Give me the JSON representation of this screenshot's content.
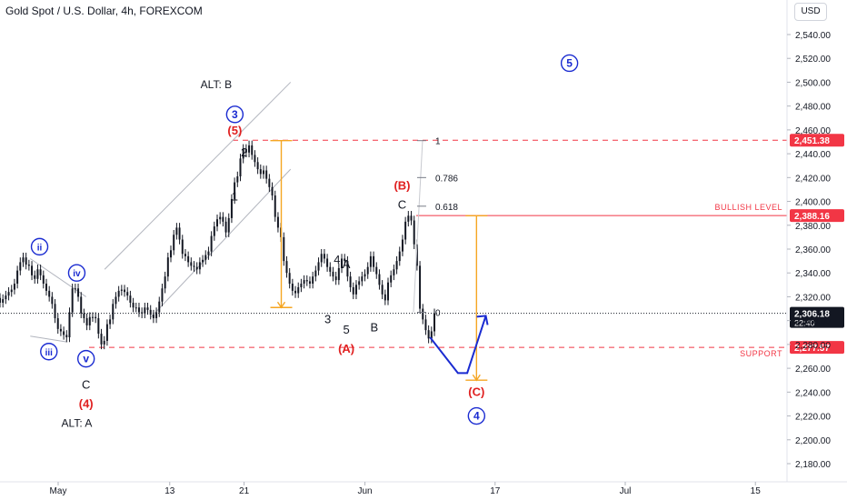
{
  "header": {
    "title": "Gold Spot / U.S. Dollar, 4h, FOREXCOM",
    "currency": "USD"
  },
  "colors": {
    "candle": "#131722",
    "channel": "#b2b5be",
    "red_level": "#f23645",
    "orange_projection": "#f5a623",
    "blue_path": "#1a2bd1",
    "wave_blue": "#1a2bd1",
    "wave_red": "#e02020",
    "fib": "#787b86"
  },
  "chart_data": {
    "type": "candlestick",
    "symbol": "Gold Spot / U.S. Dollar",
    "timeframe": "4h",
    "exchange": "FOREXCOM",
    "y_axis": {
      "ticks": [
        "2,540.00",
        "2,520.00",
        "2,500.00",
        "2,480.00",
        "2,460.00",
        "2,440.00",
        "2,420.00",
        "2,400.00",
        "2,380.00",
        "2,360.00",
        "2,340.00",
        "2,320.00",
        "2,300.00",
        "2,280.00",
        "2,260.00",
        "2,240.00",
        "2,220.00",
        "2,200.00",
        "2,180.00"
      ],
      "range": [
        2170,
        2555
      ]
    },
    "x_axis": {
      "ticks": [
        {
          "label": "May",
          "date": "2024-05-01"
        },
        {
          "label": "13",
          "date": "2024-05-13"
        },
        {
          "label": "21",
          "date": "2024-05-21"
        },
        {
          "label": "Jun",
          "date": "2024-06-03"
        },
        {
          "label": "17",
          "date": "2024-06-17"
        },
        {
          "label": "Jul",
          "date": "2024-07-01"
        },
        {
          "label": "15",
          "date": "2024-07-15"
        }
      ]
    },
    "price_levels": [
      {
        "price": 2451.38,
        "label": "2,451.38",
        "style": "dashed",
        "color": "#f23645"
      },
      {
        "price": 2388.16,
        "label": "2,388.16",
        "name": "BULLISH LEVEL",
        "style": "solid",
        "color": "#f23645"
      },
      {
        "price": 2277.57,
        "label": "2,277.57",
        "name": "SUPPORT",
        "style": "dashed",
        "color": "#f23645"
      }
    ],
    "current_price": {
      "price": 2306.18,
      "label": "2,306.18",
      "countdown": "22:40"
    },
    "fib_levels": [
      {
        "ratio": "1",
        "price": 2451
      },
      {
        "ratio": "0.786",
        "price": 2420
      },
      {
        "ratio": "0.618",
        "price": 2396
      },
      {
        "ratio": "0",
        "price": 2307
      }
    ],
    "candles_close": [
      2315,
      2318,
      2321,
      2324,
      2326,
      2331,
      2342,
      2349,
      2353,
      2347,
      2346,
      2338,
      2335,
      2343,
      2338,
      2331,
      2325,
      2320,
      2314,
      2302,
      2293,
      2291,
      2288,
      2286,
      2307,
      2327,
      2327,
      2320,
      2306,
      2302,
      2296,
      2303,
      2303,
      2302,
      2289,
      2280,
      2283,
      2297,
      2301,
      2314,
      2320,
      2325,
      2326,
      2324,
      2321,
      2315,
      2311,
      2311,
      2307,
      2306,
      2311,
      2309,
      2305,
      2302,
      2307,
      2316,
      2327,
      2337,
      2353,
      2359,
      2372,
      2378,
      2368,
      2356,
      2354,
      2349,
      2346,
      2345,
      2343,
      2349,
      2351,
      2355,
      2358,
      2371,
      2379,
      2385,
      2387,
      2383,
      2374,
      2386,
      2402,
      2416,
      2421,
      2436,
      2444,
      2441,
      2447,
      2439,
      2433,
      2427,
      2423,
      2426,
      2419,
      2412,
      2405,
      2387,
      2378,
      2370,
      2350,
      2340,
      2331,
      2325,
      2323,
      2328,
      2331,
      2334,
      2333,
      2331,
      2337,
      2342,
      2349,
      2356,
      2352,
      2345,
      2341,
      2337,
      2334,
      2344,
      2352,
      2350,
      2337,
      2328,
      2322,
      2330,
      2333,
      2337,
      2339,
      2345,
      2354,
      2345,
      2339,
      2330,
      2322,
      2317,
      2332,
      2338,
      2343,
      2350,
      2358,
      2368,
      2383,
      2388,
      2384,
      2364,
      2346,
      2310,
      2301,
      2292,
      2285,
      2291,
      2306
    ],
    "channel_lines": [
      {
        "from": {
          "date": "2024-05-06",
          "price": 2343
        },
        "to": {
          "date": "2024-05-26",
          "price": 2500
        }
      },
      {
        "from": {
          "date": "2024-05-11",
          "price": 2303
        },
        "to": {
          "date": "2024-05-26",
          "price": 2427
        }
      },
      {
        "from": {
          "date": "2024-04-28",
          "price": 2287
        },
        "to": {
          "date": "2024-05-02",
          "price": 2282
        }
      },
      {
        "from": {
          "date": "2024-04-28",
          "price": 2352
        },
        "to": {
          "date": "2024-05-04",
          "price": 2320
        }
      }
    ],
    "projections": [
      {
        "type": "measure",
        "from_price": 2451,
        "to_price": 2311,
        "date": "2024-05-25"
      },
      {
        "type": "measure",
        "from_price": 2388,
        "to_price": 2250,
        "date": "2024-06-15"
      }
    ],
    "projected_path": [
      {
        "date": "2024-06-10",
        "price": 2286
      },
      {
        "date": "2024-06-13",
        "price": 2256
      },
      {
        "date": "2024-06-14",
        "price": 2256
      },
      {
        "date": "2024-06-16",
        "price": 2304
      }
    ],
    "wave_labels": [
      {
        "text": "ALT: B",
        "color": "#131722",
        "style": "plain",
        "date": "2024-05-18",
        "price": 2498
      },
      {
        "text": "3",
        "color": "#1a2bd1",
        "style": "circle",
        "date": "2024-05-20",
        "price": 2473
      },
      {
        "text": "(5)",
        "color": "#e02020",
        "style": "plain",
        "date": "2024-05-20",
        "price": 2459
      },
      {
        "text": "2",
        "color": "#131722",
        "style": "plain",
        "date": "2024-05-21",
        "price": 2441
      },
      {
        "text": "1",
        "color": "#131722",
        "style": "plain",
        "date": "2024-05-20",
        "price": 2404
      },
      {
        "text": "ii",
        "color": "#1a2bd1",
        "style": "circle",
        "date": "2024-04-29",
        "price": 2362
      },
      {
        "text": "iv",
        "color": "#1a2bd1",
        "style": "circle",
        "date": "2024-05-03",
        "price": 2340
      },
      {
        "text": "iii",
        "color": "#1a2bd1",
        "style": "circle",
        "date": "2024-04-30",
        "price": 2274
      },
      {
        "text": "v",
        "color": "#1a2bd1",
        "style": "circle",
        "date": "2024-05-04",
        "price": 2268
      },
      {
        "text": "C",
        "color": "#131722",
        "style": "plain",
        "date": "2024-05-04",
        "price": 2246
      },
      {
        "text": "(4)",
        "color": "#e02020",
        "style": "plain",
        "date": "2024-05-04",
        "price": 2230
      },
      {
        "text": "ALT: A",
        "color": "#131722",
        "style": "plain",
        "date": "2024-05-03",
        "price": 2214
      },
      {
        "text": "4",
        "color": "#131722",
        "style": "plain",
        "date": "2024-05-31",
        "price": 2351
      },
      {
        "text": "A",
        "color": "#131722",
        "style": "plain",
        "date": "2024-06-01",
        "price": 2347
      },
      {
        "text": "3",
        "color": "#131722",
        "style": "plain",
        "date": "2024-05-30",
        "price": 2301
      },
      {
        "text": "5",
        "color": "#131722",
        "style": "plain",
        "date": "2024-06-01",
        "price": 2292
      },
      {
        "text": "B",
        "color": "#131722",
        "style": "plain",
        "date": "2024-06-04",
        "price": 2294
      },
      {
        "text": "(A)",
        "color": "#e02020",
        "style": "plain",
        "date": "2024-06-01",
        "price": 2276
      },
      {
        "text": "(B)",
        "color": "#e02020",
        "style": "plain",
        "date": "2024-06-07",
        "price": 2413
      },
      {
        "text": "C",
        "color": "#131722",
        "style": "plain",
        "date": "2024-06-07",
        "price": 2397
      },
      {
        "text": "(C)",
        "color": "#e02020",
        "style": "plain",
        "date": "2024-06-15",
        "price": 2240
      },
      {
        "text": "4",
        "color": "#1a2bd1",
        "style": "circle",
        "date": "2024-06-15",
        "price": 2220
      },
      {
        "text": "5",
        "color": "#1a2bd1",
        "style": "circle",
        "date": "2024-06-25",
        "price": 2516
      }
    ]
  }
}
